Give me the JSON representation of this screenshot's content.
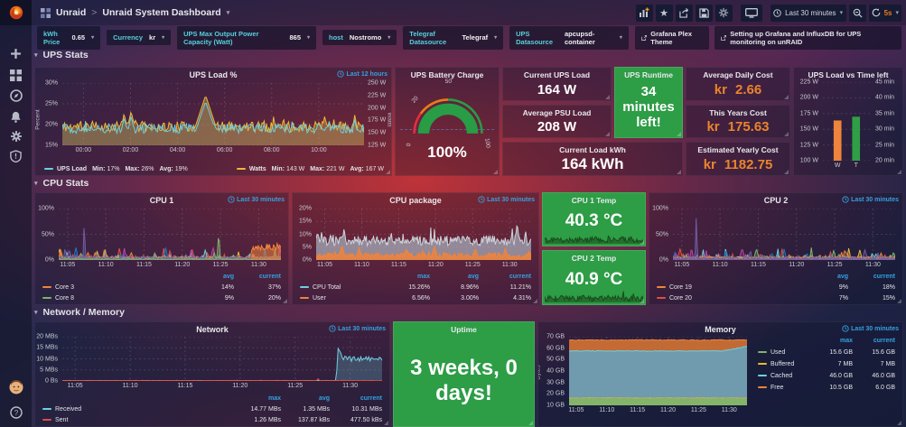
{
  "labels": {
    "min": "Min:",
    "max": "Max:",
    "avg": "Avg:"
  },
  "nav": {
    "app": "Unraid",
    "sep": ">",
    "title": "Unraid System Dashboard",
    "time_range": "Last 30 minutes",
    "refresh": "5s"
  },
  "links": [
    {
      "label": "Grafana Plex Theme"
    },
    {
      "label": "Setting up Grafana and InfluxDB for UPS monitoring on unRAID"
    }
  ],
  "variables": [
    {
      "label": "kWh Price",
      "value": "0.65"
    },
    {
      "label": "Currency",
      "value": "kr"
    },
    {
      "label": "UPS Max Output Power Capacity (Watt)",
      "value": "865"
    },
    {
      "label": "host",
      "value": "Nostromo"
    },
    {
      "label": "Telegraf Datasource",
      "value": "Telegraf"
    },
    {
      "label": "UPS Datasource",
      "value": "apcupsd-container"
    }
  ],
  "rows": [
    {
      "title": "UPS Stats"
    },
    {
      "title": "CPU Stats"
    },
    {
      "title": "Network / Memory"
    }
  ],
  "panels": {
    "ups_load": {
      "title": "UPS Load %",
      "time_range": "Last 12 hours",
      "ylabel_left": "Percent",
      "ylabel_right": "Watts",
      "chart": {
        "type": "line",
        "y_left_ticks": [
          "30%",
          "25%",
          "20%",
          "15%"
        ],
        "y_right_ticks": [
          "250 W",
          "225 W",
          "200 W",
          "175 W",
          "150 W",
          "125 W"
        ],
        "x_ticks": [
          "00:00",
          "02:00",
          "04:00",
          "06:00",
          "08:00",
          "10:00"
        ],
        "series": [
          {
            "name": "UPS Load",
            "color": "#6ed0e0",
            "min": "17%",
            "max": "26%",
            "avg": "19%"
          },
          {
            "name": "Watts",
            "color": "#eab839",
            "min": "143 W",
            "max": "221 W",
            "avg": "167 W"
          }
        ]
      }
    },
    "battery": {
      "title": "UPS Battery Charge",
      "value": "100%",
      "gauge_ticks": [
        "0",
        "20",
        "50",
        "100"
      ],
      "thresholds": [
        "#e02f44",
        "#eb7b18",
        "#299c46"
      ]
    },
    "current_ups_load": {
      "title": "Current UPS Load",
      "value": "164 W"
    },
    "avg_psu_load": {
      "title": "Average PSU Load",
      "value": "208 W"
    },
    "ups_runtime": {
      "title": "UPS Runtime",
      "value": "34 minutes left!"
    },
    "current_load_kwh": {
      "title": "Current Load kWh",
      "value": "164 kWh"
    },
    "avg_daily_cost": {
      "title": "Average Daily Cost",
      "currency": "kr",
      "amount": "2.66"
    },
    "this_years_cost": {
      "title": "This Years Cost",
      "currency": "kr",
      "amount": "175.63"
    },
    "est_yearly_cost": {
      "title": "Estimated Yearly Cost",
      "currency": "kr",
      "amount": "1182.75"
    },
    "ups_vs_time": {
      "title": "UPS Load vs Time left",
      "chart": {
        "type": "bar",
        "y_left_ticks": [
          "225 W",
          "200 W",
          "175 W",
          "150 W",
          "125 W",
          "100 W"
        ],
        "y_right_ticks": [
          "45 min",
          "40 min",
          "35 min",
          "30 min",
          "25 min",
          "20 min"
        ],
        "categories": [
          "W",
          "T"
        ],
        "bars": [
          {
            "label": "W",
            "color": "#ef843c",
            "value": 164,
            "axis": "watts"
          },
          {
            "label": "T",
            "color": "#2f9e46",
            "value": 34,
            "axis": "minutes"
          }
        ],
        "y_left_range": [
          100,
          225
        ],
        "y_right_range": [
          20,
          45
        ]
      }
    },
    "cpu1": {
      "title": "CPU 1",
      "time_range": "Last 30 minutes",
      "chart": {
        "type": "line",
        "y_ticks": [
          "100%",
          "50%",
          "0%"
        ],
        "x_ticks": [
          "11:05",
          "11:10",
          "11:15",
          "11:20",
          "11:25",
          "11:30"
        ],
        "legend_cols": [
          "avg",
          "current"
        ],
        "series": [
          {
            "name": "Core 3",
            "color": "#ef843c",
            "avg": "14%",
            "current": "37%"
          },
          {
            "name": "Core 8",
            "color": "#7eb26d",
            "avg": "9%",
            "current": "20%"
          }
        ]
      }
    },
    "cpu_package": {
      "title": "CPU package",
      "time_range": "Last 30 minutes",
      "chart": {
        "type": "line",
        "y_ticks": [
          "20%",
          "15%",
          "10%",
          "5%",
          "0%"
        ],
        "x_ticks": [
          "11:05",
          "11:10",
          "11:15",
          "11:20",
          "11:25",
          "11:30"
        ],
        "legend_cols": [
          "max",
          "avg",
          "current"
        ],
        "series": [
          {
            "name": "CPU Total",
            "color": "#6ed0e0",
            "max": "15.26%",
            "avg": "8.96%",
            "current": "11.21%"
          },
          {
            "name": "User",
            "color": "#ef843c",
            "max": "6.56%",
            "avg": "3.00%",
            "current": "4.31%"
          }
        ]
      }
    },
    "cpu1_temp": {
      "title": "CPU 1 Temp",
      "value": "40.3 °C"
    },
    "cpu2_temp": {
      "title": "CPU 2 Temp",
      "value": "40.9 °C"
    },
    "cpu2": {
      "title": "CPU 2",
      "time_range": "Last 30 minutes",
      "chart": {
        "type": "line",
        "y_ticks": [
          "100%",
          "50%",
          "0%"
        ],
        "x_ticks": [
          "11:05",
          "11:10",
          "11:15",
          "11:20",
          "11:25",
          "11:30"
        ],
        "legend_cols": [
          "avg",
          "current"
        ],
        "series": [
          {
            "name": "Core 19",
            "color": "#ef843c",
            "avg": "9%",
            "current": "18%"
          },
          {
            "name": "Core 20",
            "color": "#e24d42",
            "avg": "7%",
            "current": "15%"
          }
        ]
      }
    },
    "network": {
      "title": "Network",
      "time_range": "Last 30 minutes",
      "chart": {
        "type": "line",
        "y_ticks": [
          "20 MBs",
          "15 MBs",
          "10 MBs",
          "5 MBs",
          "0 Bs"
        ],
        "x_ticks": [
          "11:05",
          "11:10",
          "11:15",
          "11:20",
          "11:25",
          "11:30"
        ],
        "legend_cols": [
          "max",
          "avg",
          "current"
        ],
        "series": [
          {
            "name": "Received",
            "color": "#6ed0e0",
            "max": "14.77 MBs",
            "avg": "1.35 MBs",
            "current": "10.31 MBs"
          },
          {
            "name": "Sent",
            "color": "#e24d42",
            "max": "1.26 MBs",
            "avg": "137.87 kBs",
            "current": "477.50 kBs"
          }
        ]
      }
    },
    "uptime": {
      "title": "Uptime",
      "value": "3 weeks, 0 days!"
    },
    "memory": {
      "title": "Memory",
      "time_range": "Last 30 minutes",
      "ylabel": "Bytes",
      "chart": {
        "type": "area",
        "y_ticks": [
          "70 GB",
          "60 GB",
          "50 GB",
          "40 GB",
          "30 GB",
          "20 GB",
          "10 GB"
        ],
        "x_ticks": [
          "11:05",
          "11:10",
          "11:15",
          "11:20",
          "11:25",
          "11:30"
        ],
        "legend_cols": [
          "max",
          "current"
        ],
        "series": [
          {
            "name": "Used",
            "color": "#7eb26d",
            "max": "15.6 GB",
            "current": "15.6 GB"
          },
          {
            "name": "Buffered",
            "color": "#eab839",
            "max": "7 MB",
            "current": "7 MB"
          },
          {
            "name": "Cached",
            "color": "#6ed0e0",
            "max": "46.0 GB",
            "current": "46.0 GB"
          },
          {
            "name": "Free",
            "color": "#ef843c",
            "max": "10.5 GB",
            "current": "6.0 GB"
          }
        ]
      }
    }
  },
  "colors": {
    "accent_blue": "#35a1e0",
    "accent_orange": "#eb7b18",
    "green_panel": "#2d9d46",
    "teal_label": "#56cfdb"
  }
}
